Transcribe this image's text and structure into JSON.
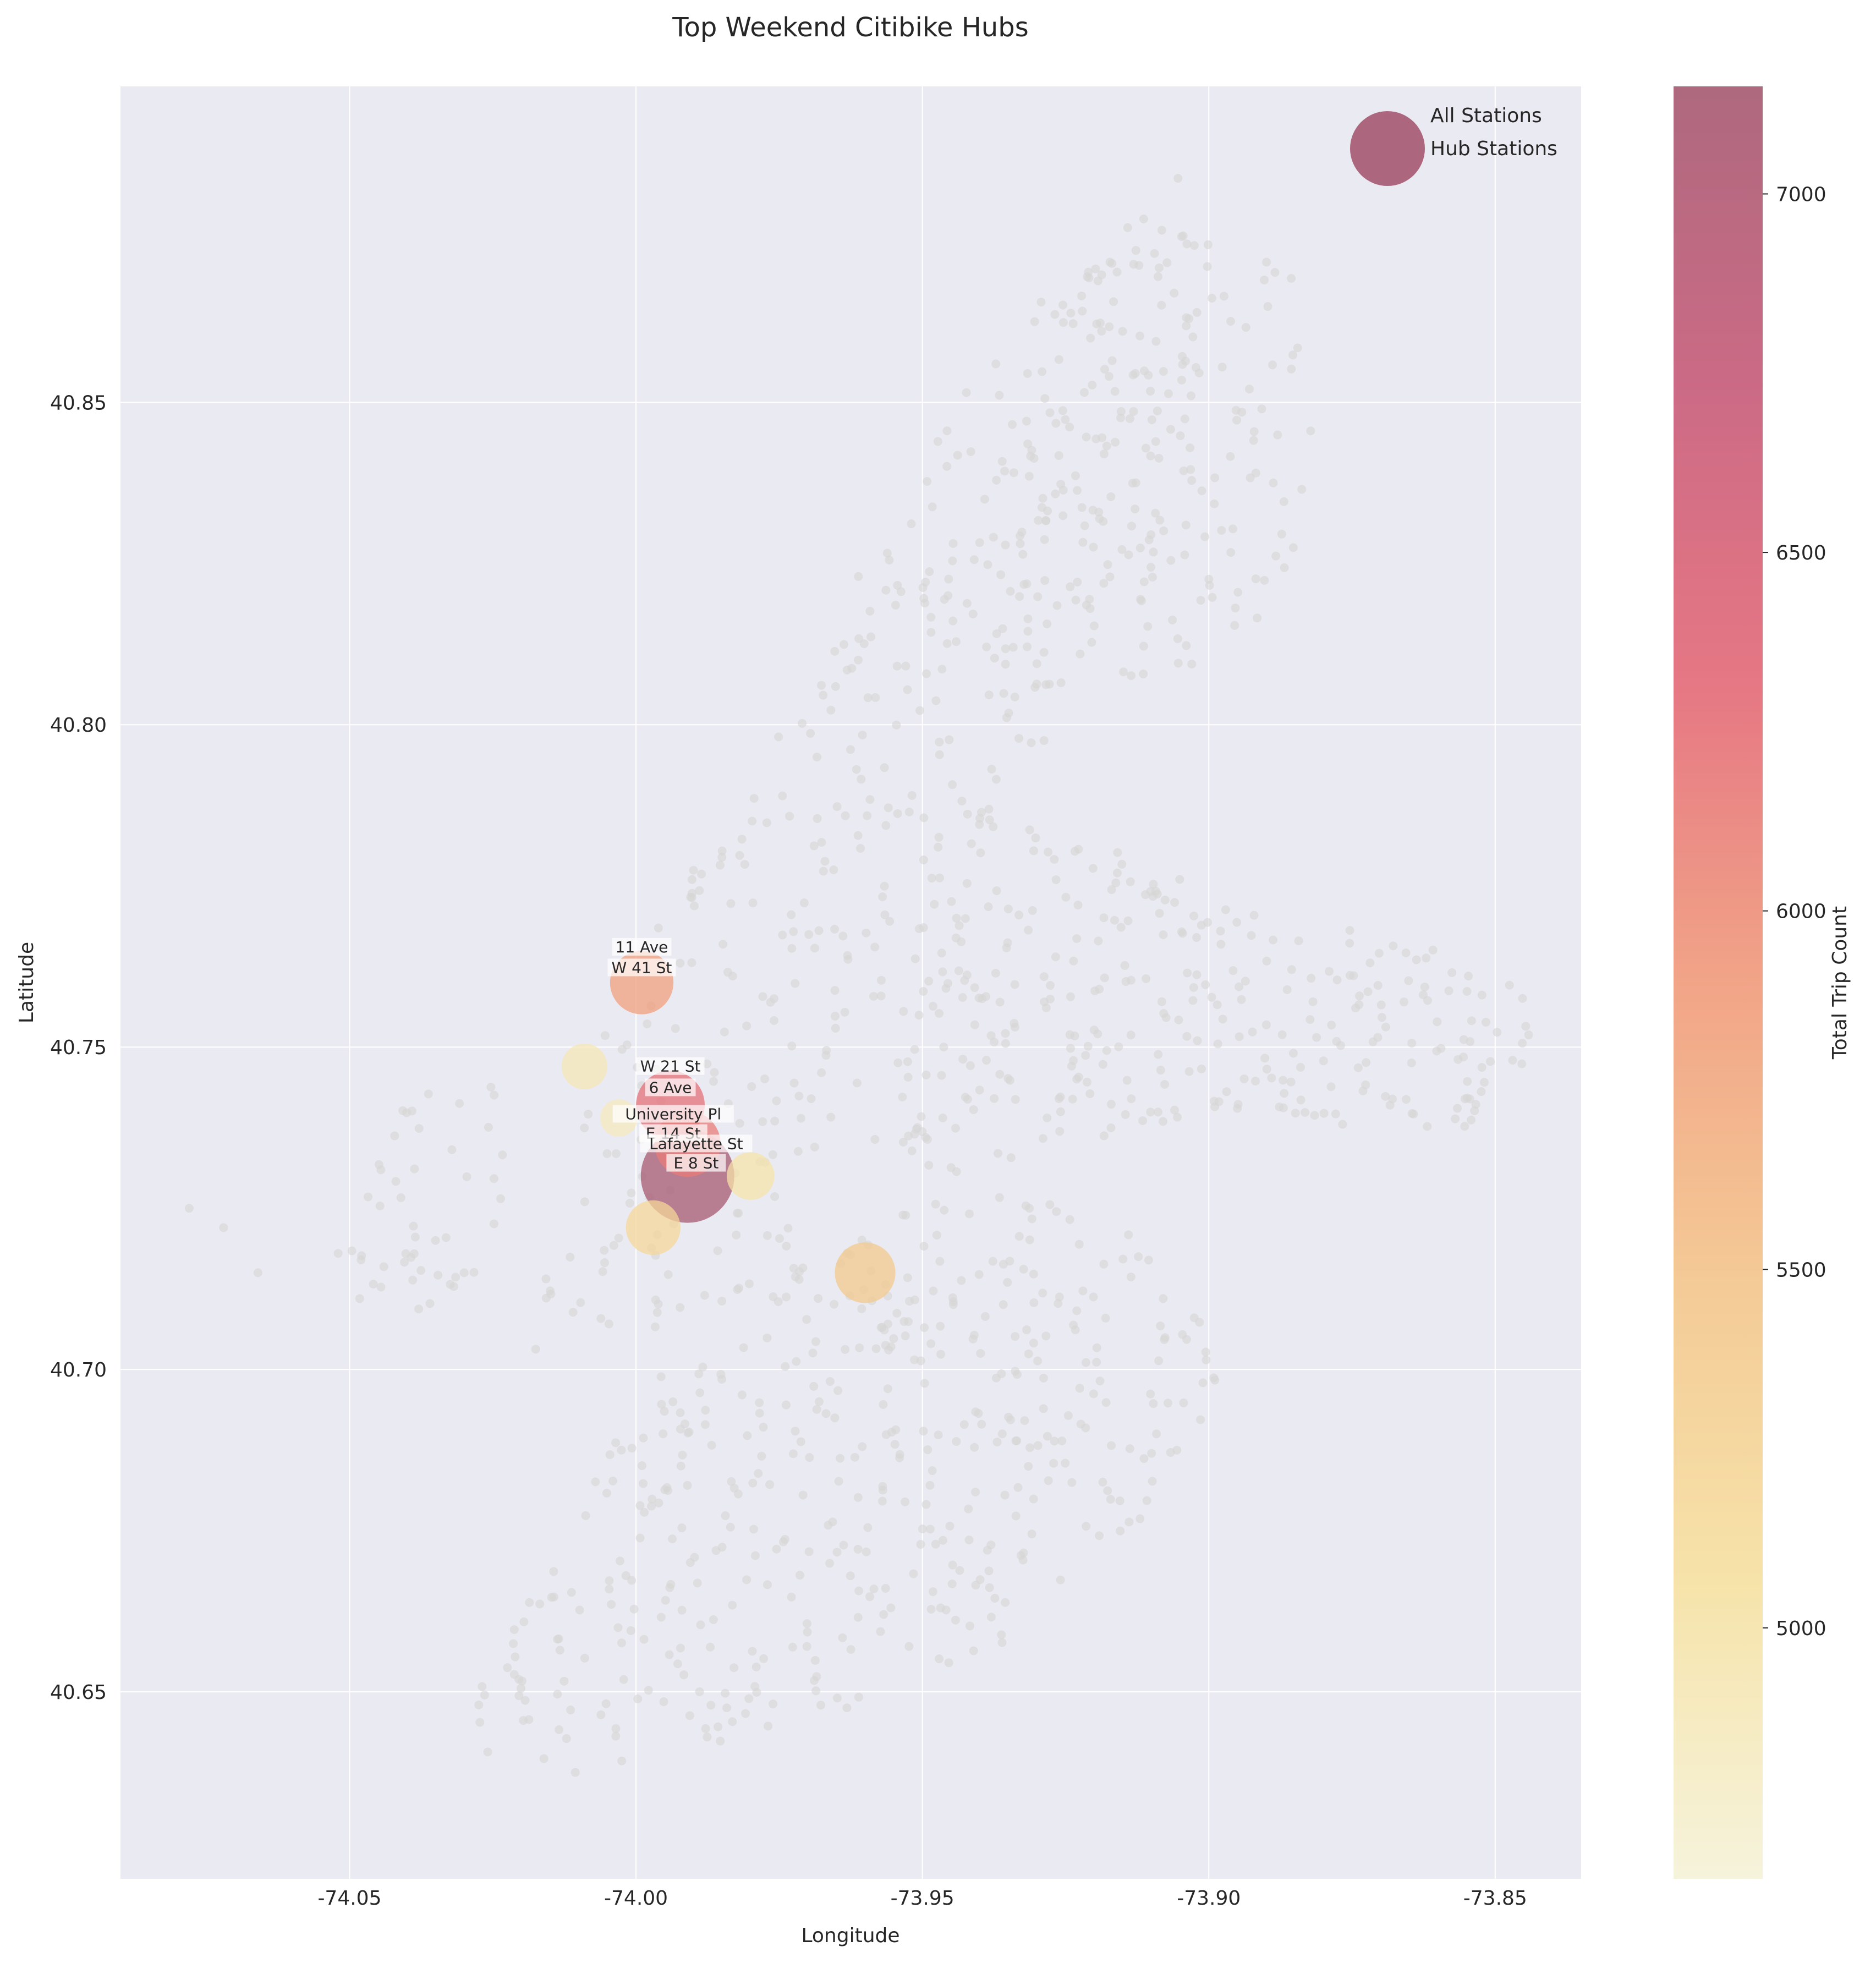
{
  "chart_data": {
    "type": "scatter",
    "title": "Top Weekend Citibike Hubs",
    "xlabel": "Longitude",
    "ylabel": "Latitude",
    "xlim": [
      -74.09,
      -73.835
    ],
    "ylim": [
      40.621,
      40.899
    ],
    "x_ticks": [
      "-74.05",
      "-74.00",
      "-73.95",
      "-73.90",
      "-73.85"
    ],
    "x_tick_values": [
      -74.05,
      -74.0,
      -73.95,
      -73.9,
      -73.85
    ],
    "y_ticks": [
      "40.65",
      "40.70",
      "40.75",
      "40.80",
      "40.85"
    ],
    "y_tick_values": [
      40.65,
      40.7,
      40.75,
      40.8,
      40.85
    ],
    "grid": true,
    "legend": {
      "placement": "top-right",
      "entries": [
        "All Stations",
        "Hub Stations"
      ]
    },
    "colorbar": {
      "label": "Total Trip Count",
      "min": 4650,
      "max": 7150,
      "ticks": [
        "5000",
        "5500",
        "6000",
        "6500",
        "7000"
      ],
      "tick_values": [
        5000,
        5500,
        6000,
        6500,
        7000
      ],
      "colors": [
        "#f5f2d8",
        "#f5e0a0",
        "#f3c48a",
        "#f09a7a",
        "#e36876",
        "#c65a78",
        "#a55870"
      ]
    },
    "colors": {
      "background": "#eaeaf2",
      "grid": "#ffffff",
      "all_stations": "#d6d6d6"
    },
    "all_stations_regions": [
      {
        "name": "manhattan",
        "poly": [
          [
            -74.02,
            40.7
          ],
          [
            -74.005,
            40.704
          ],
          [
            -73.972,
            40.711
          ],
          [
            -73.968,
            40.727
          ],
          [
            -73.958,
            40.75
          ],
          [
            -73.93,
            40.795
          ],
          [
            -73.915,
            40.815
          ],
          [
            -73.9,
            40.86
          ],
          [
            -73.898,
            40.88
          ],
          [
            -73.908,
            40.89
          ],
          [
            -73.925,
            40.87
          ],
          [
            -73.945,
            40.85
          ],
          [
            -73.975,
            40.8
          ],
          [
            -73.99,
            40.78
          ],
          [
            -74.01,
            40.75
          ],
          [
            -74.015,
            40.72
          ]
        ],
        "count": 380
      },
      {
        "name": "bronx",
        "poly": [
          [
            -73.935,
            40.8
          ],
          [
            -73.92,
            40.805
          ],
          [
            -73.9,
            40.81
          ],
          [
            -73.885,
            40.82
          ],
          [
            -73.88,
            40.845
          ],
          [
            -73.885,
            40.87
          ],
          [
            -73.905,
            40.885
          ],
          [
            -73.922,
            40.87
          ],
          [
            -73.935,
            40.84
          ],
          [
            -73.94,
            40.82
          ]
        ],
        "count": 170
      },
      {
        "name": "queens",
        "poly": [
          [
            -73.962,
            40.735
          ],
          [
            -73.955,
            40.755
          ],
          [
            -73.945,
            40.77
          ],
          [
            -73.93,
            40.785
          ],
          [
            -73.915,
            40.78
          ],
          [
            -73.89,
            40.77
          ],
          [
            -73.87,
            40.768
          ],
          [
            -73.845,
            40.76
          ],
          [
            -73.84,
            40.74
          ],
          [
            -73.86,
            40.735
          ],
          [
            -73.89,
            40.74
          ],
          [
            -73.92,
            40.735
          ],
          [
            -73.945,
            40.728
          ]
        ],
        "count": 320
      },
      {
        "name": "brooklyn",
        "poly": [
          [
            -74.032,
            40.64
          ],
          [
            -74.02,
            40.635
          ],
          [
            -73.995,
            40.64
          ],
          [
            -73.97,
            40.645
          ],
          [
            -73.945,
            40.65
          ],
          [
            -73.925,
            40.665
          ],
          [
            -73.905,
            40.68
          ],
          [
            -73.898,
            40.7
          ],
          [
            -73.905,
            40.715
          ],
          [
            -73.92,
            40.725
          ],
          [
            -73.945,
            40.728
          ],
          [
            -73.962,
            40.72
          ],
          [
            -73.978,
            40.705
          ],
          [
            -73.995,
            40.7
          ],
          [
            -74.005,
            40.69
          ],
          [
            -74.015,
            40.67
          ],
          [
            -74.025,
            40.655
          ]
        ],
        "count": 450
      },
      {
        "name": "jersey-city",
        "poly": [
          [
            -74.055,
            40.71
          ],
          [
            -74.04,
            40.745
          ],
          [
            -74.03,
            40.752
          ],
          [
            -74.02,
            40.735
          ],
          [
            -74.025,
            40.715
          ],
          [
            -74.04,
            40.708
          ]
        ],
        "count": 45
      }
    ],
    "all_stations_extra": [
      [
        -74.078,
        40.725
      ],
      [
        -74.072,
        40.722
      ],
      [
        -74.066,
        40.715
      ],
      [
        -74.052,
        40.718
      ],
      [
        -74.048,
        40.717
      ],
      [
        -74.035,
        40.72
      ],
      [
        -74.03,
        40.715
      ]
    ],
    "hubs": [
      {
        "lon": -73.991,
        "lat": 40.73,
        "trips": 7150,
        "size": 1.0
      },
      {
        "lon": -73.991,
        "lat": 40.735,
        "trips": 6150,
        "size": 0.5
      },
      {
        "lon": -73.994,
        "lat": 40.741,
        "trips": 6250,
        "size": 0.54
      },
      {
        "lon": -73.999,
        "lat": 40.76,
        "trips": 5850,
        "size": 0.46
      },
      {
        "lon": -73.96,
        "lat": 40.715,
        "trips": 5400,
        "size": 0.42
      },
      {
        "lon": -73.997,
        "lat": 40.722,
        "trips": 5200,
        "size": 0.34
      },
      {
        "lon": -73.98,
        "lat": 40.73,
        "trips": 5000,
        "size": 0.26
      },
      {
        "lon": -74.009,
        "lat": 40.747,
        "trips": 4900,
        "size": 0.24
      },
      {
        "lon": -74.003,
        "lat": 40.739,
        "trips": 4850,
        "size": 0.16
      }
    ],
    "hub_labels": [
      {
        "text": "11 Ave",
        "lon": -73.999,
        "lat": 40.7647
      },
      {
        "text": "W 41 St",
        "lon": -73.999,
        "lat": 40.7615
      },
      {
        "text": "W 21 St",
        "lon": -73.994,
        "lat": 40.7462
      },
      {
        "text": "6 Ave",
        "lon": -73.994,
        "lat": 40.7429
      },
      {
        "text": "University Pl",
        "lon": -73.9935,
        "lat": 40.7388
      },
      {
        "text": "E 14 St",
        "lon": -73.9935,
        "lat": 40.7358
      },
      {
        "text": "Lafayette St",
        "lon": -73.9895,
        "lat": 40.7342
      },
      {
        "text": "E 8 St",
        "lon": -73.9895,
        "lat": 40.7312
      }
    ]
  }
}
